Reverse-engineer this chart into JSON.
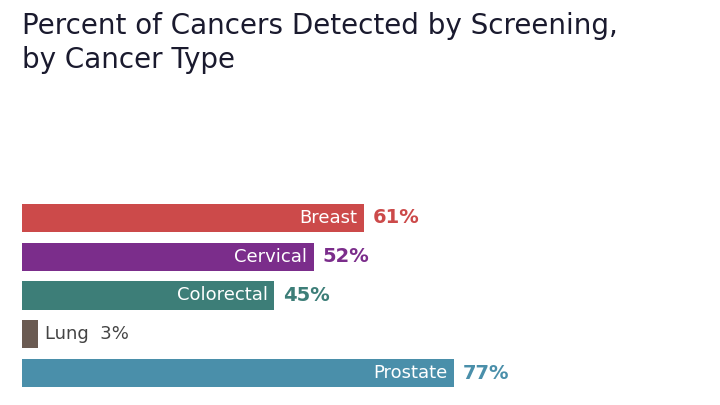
{
  "title": "Percent of Cancers Detected by Screening,\nby Cancer Type",
  "categories": [
    "Breast",
    "Cervical",
    "Colorectal",
    "Lung",
    "Prostate"
  ],
  "values": [
    61,
    52,
    45,
    3,
    77
  ],
  "bar_colors": [
    "#cc4a4a",
    "#7b2d8b",
    "#3d7e78",
    "#6b5b52",
    "#4a8faa"
  ],
  "label_colors": [
    "#cc4a4a",
    "#7b2d8b",
    "#3d7e78",
    "#555555",
    "#4a8faa"
  ],
  "title_color": "#1a1a2e",
  "background_color": "#ffffff",
  "title_fontsize": 20,
  "label_fontsize": 13,
  "value_fontsize": 14,
  "xlim": [
    0,
    100
  ]
}
